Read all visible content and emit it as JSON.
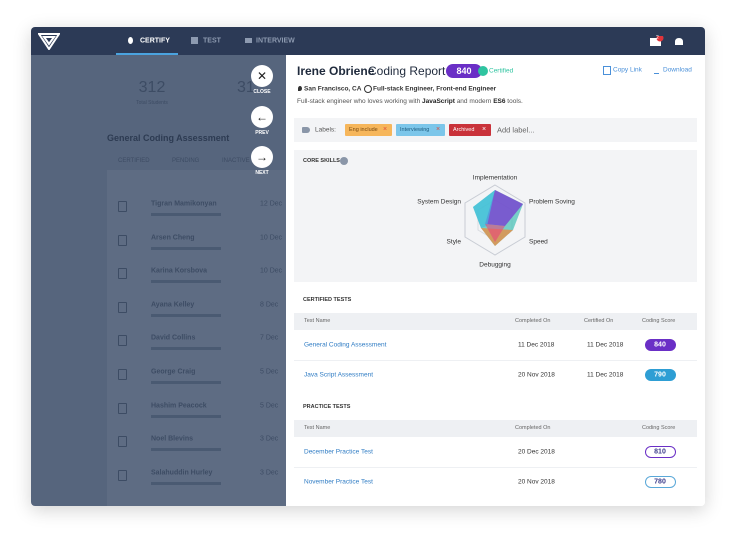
{
  "nav": {
    "items": [
      "CERTIFY",
      "TEST",
      "INTERVIEW"
    ],
    "badge": "2"
  },
  "left": {
    "stat1": "312",
    "stat1_label": "Total Students",
    "stat2": "31",
    "title": "General Coding Assessment",
    "tabs": [
      "CERTIFIED",
      "PENDING",
      "INACTIVE"
    ],
    "students": [
      {
        "name": "Tigran Mamikonyan",
        "date": "12 Dec"
      },
      {
        "name": "Arsen Cheng",
        "date": "10 Dec"
      },
      {
        "name": "Karina Korsbova",
        "date": "10 Dec"
      },
      {
        "name": "Ayana Kelley",
        "date": "8 Dec"
      },
      {
        "name": "David Collins",
        "date": "7 Dec"
      },
      {
        "name": "George Craig",
        "date": "5 Dec"
      },
      {
        "name": "Hashim Peacock",
        "date": "5 Dec"
      },
      {
        "name": "Noel Blevins",
        "date": "3 Dec"
      },
      {
        "name": "Salahuddin Hurley",
        "date": "3 Dec"
      }
    ]
  },
  "controls": [
    "CLOSE",
    "PREV",
    "NEXT"
  ],
  "report": {
    "name": "Irene Obriene",
    "title": "Coding Report",
    "score": "840",
    "status": "Certified",
    "copy_link": "Copy Link",
    "download": "Download",
    "location": "San Francisco, CA",
    "roles": "Full-stack Engineer, Front-end Engineer",
    "description": [
      "Full-stack engineer who loves working with ",
      "JavaScript",
      " and modern ",
      "ES6",
      " tools."
    ],
    "labels_title": "Labels:",
    "labels": [
      "Eng include",
      "Interviewing",
      "Archived"
    ],
    "add_label": "Add label...",
    "skills_title": "CORE SKILLS",
    "skills": [
      "Implementation",
      "Problem Soving",
      "Speed",
      "Debugging",
      "Style",
      "System Design"
    ],
    "certified": {
      "title": "CERTIFIED TESTS",
      "headers": [
        "Test Name",
        "Completed On",
        "Certified On",
        "Coding Score"
      ],
      "rows": [
        [
          "General Coding Assessment",
          "11 Dec 2018",
          "11 Dec 2018",
          "840"
        ],
        [
          "Java Script Assessment",
          "20 Nov 2018",
          "11 Dec 2018",
          "790"
        ]
      ]
    },
    "practice": {
      "title": "PRACTICE TESTS",
      "headers": [
        "Test Name",
        "Completed On",
        "Coding Score"
      ],
      "rows": [
        [
          "December Practice Test",
          "20 Dec 2018",
          "810"
        ],
        [
          "November Practice Test",
          "20 Nov 2018",
          "780"
        ]
      ]
    }
  }
}
